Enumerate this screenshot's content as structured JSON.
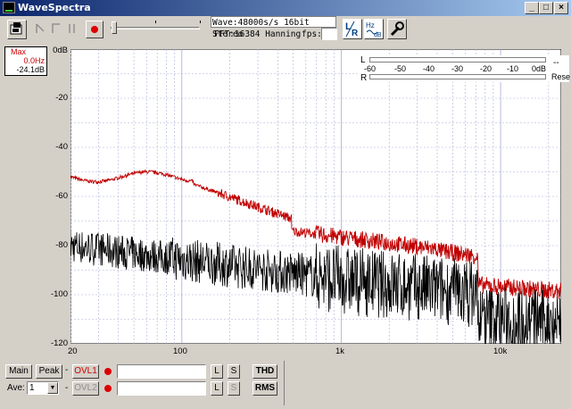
{
  "window": {
    "title": "WaveSpectra"
  },
  "title_buttons": [
    "_",
    "□",
    "×"
  ],
  "toolbar": {
    "wave_info": "Wave:48000s/s 16bit Stereo",
    "fft_info": "FFT:16384 Hanning",
    "fps_label": "fps:",
    "fps_value": ""
  },
  "max_box": {
    "label": "Max",
    "freq": "0.0Hz",
    "level": "-24.1dB"
  },
  "y_ticks": [
    "0dB",
    "-20",
    "-40",
    "-60",
    "-80",
    "-100",
    "-120"
  ],
  "x_ticks": [
    "20",
    "100",
    "1k",
    "10k"
  ],
  "level_meter": {
    "l_label": "L",
    "r_label": "R",
    "scale": [
      "-60",
      "-50",
      "-40",
      "-30",
      "-20",
      "-10",
      "0dB"
    ],
    "extra": "--",
    "reset_label": "Rese"
  },
  "bottom": {
    "main_label": "Main",
    "peak_label": "Peak",
    "dash1": "-",
    "ovl1_label": "OVL1",
    "l_label": "L",
    "s_label": "S",
    "thd_label": "THD",
    "ave_label": "Ave:",
    "ave_value": "1",
    "dash2": "-",
    "ovl2_label": "OVL2",
    "rms_label": "RMS"
  },
  "colors": {
    "red_trace": "#c00000",
    "black_trace": "#000000",
    "grid": "#aab0d8"
  }
}
